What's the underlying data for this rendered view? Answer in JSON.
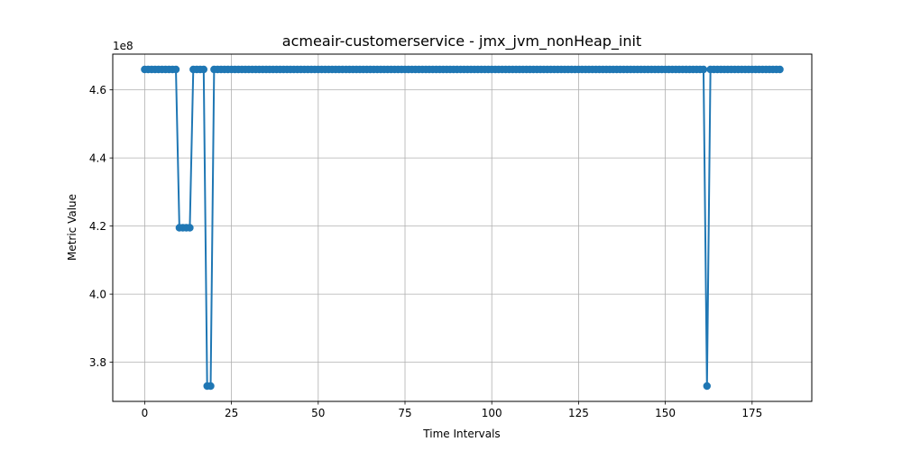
{
  "chart_data": {
    "type": "line",
    "title": "acmeair-customerservice - jmx_jvm_nonHeap_init",
    "xlabel": "Time Intervals",
    "ylabel": "Metric Value",
    "y_offset_label": "1e8",
    "xlim": [
      -9.2,
      192.2
    ],
    "ylim": [
      3.685,
      4.705
    ],
    "x_ticks": [
      0,
      25,
      50,
      75,
      100,
      125,
      150,
      175
    ],
    "x_tick_labels": [
      "0",
      "25",
      "50",
      "75",
      "100",
      "125",
      "150",
      "175"
    ],
    "y_ticks": [
      3.8,
      4.0,
      4.2,
      4.4,
      4.6
    ],
    "y_tick_labels": [
      "3.8",
      "4.0",
      "4.2",
      "4.4",
      "4.6"
    ],
    "grid": true,
    "series_color": "#1f77b4",
    "x_start": 0,
    "series": [
      {
        "values": [
          4.66,
          4.66,
          4.66,
          4.66,
          4.66,
          4.66,
          4.66,
          4.66,
          4.66,
          4.66,
          4.195,
          4.195,
          4.195,
          4.195,
          4.66,
          4.66,
          4.66,
          4.66,
          3.73,
          3.73,
          4.66,
          4.66,
          4.66,
          4.66,
          4.66,
          4.66,
          4.66,
          4.66,
          4.66,
          4.66,
          4.66,
          4.66,
          4.66,
          4.66,
          4.66,
          4.66,
          4.66,
          4.66,
          4.66,
          4.66,
          4.66,
          4.66,
          4.66,
          4.66,
          4.66,
          4.66,
          4.66,
          4.66,
          4.66,
          4.66,
          4.66,
          4.66,
          4.66,
          4.66,
          4.66,
          4.66,
          4.66,
          4.66,
          4.66,
          4.66,
          4.66,
          4.66,
          4.66,
          4.66,
          4.66,
          4.66,
          4.66,
          4.66,
          4.66,
          4.66,
          4.66,
          4.66,
          4.66,
          4.66,
          4.66,
          4.66,
          4.66,
          4.66,
          4.66,
          4.66,
          4.66,
          4.66,
          4.66,
          4.66,
          4.66,
          4.66,
          4.66,
          4.66,
          4.66,
          4.66,
          4.66,
          4.66,
          4.66,
          4.66,
          4.66,
          4.66,
          4.66,
          4.66,
          4.66,
          4.66,
          4.66,
          4.66,
          4.66,
          4.66,
          4.66,
          4.66,
          4.66,
          4.66,
          4.66,
          4.66,
          4.66,
          4.66,
          4.66,
          4.66,
          4.66,
          4.66,
          4.66,
          4.66,
          4.66,
          4.66,
          4.66,
          4.66,
          4.66,
          4.66,
          4.66,
          4.66,
          4.66,
          4.66,
          4.66,
          4.66,
          4.66,
          4.66,
          4.66,
          4.66,
          4.66,
          4.66,
          4.66,
          4.66,
          4.66,
          4.66,
          4.66,
          4.66,
          4.66,
          4.66,
          4.66,
          4.66,
          4.66,
          4.66,
          4.66,
          4.66,
          4.66,
          4.66,
          4.66,
          4.66,
          4.66,
          4.66,
          4.66,
          4.66,
          4.66,
          4.66,
          4.66,
          4.66,
          3.73,
          4.66,
          4.66,
          4.66,
          4.66,
          4.66,
          4.66,
          4.66,
          4.66,
          4.66,
          4.66,
          4.66,
          4.66,
          4.66,
          4.66,
          4.66,
          4.66,
          4.66,
          4.66,
          4.66,
          4.66,
          4.66
        ]
      }
    ]
  }
}
